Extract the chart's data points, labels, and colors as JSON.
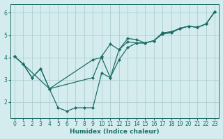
{
  "title": "",
  "xlabel": "Humidex (Indice chaleur)",
  "ylabel": "",
  "bg_color": "#d4ecee",
  "grid_color": "#aecdd1",
  "line_color": "#1e6e68",
  "ylim": [
    1.3,
    6.4
  ],
  "xlim": [
    -0.5,
    23.5
  ],
  "yticks": [
    2,
    3,
    4,
    5,
    6
  ],
  "xticks": [
    0,
    1,
    2,
    3,
    4,
    5,
    6,
    7,
    8,
    9,
    10,
    11,
    12,
    13,
    14,
    15,
    16,
    17,
    18,
    19,
    20,
    21,
    22,
    23
  ],
  "line1_x": [
    0,
    1,
    2,
    3,
    4,
    5,
    6,
    7,
    8,
    9,
    10,
    11,
    12,
    13,
    14,
    15,
    16,
    17,
    18,
    19,
    20,
    21,
    22,
    23
  ],
  "line1_y": [
    4.05,
    3.7,
    3.1,
    3.5,
    2.6,
    1.75,
    1.6,
    1.75,
    1.75,
    1.75,
    3.3,
    3.1,
    3.9,
    4.45,
    4.65,
    4.65,
    4.75,
    5.05,
    5.1,
    5.3,
    5.4,
    5.35,
    5.5,
    6.05
  ],
  "line2_x": [
    0,
    1,
    2,
    3,
    4,
    9,
    10,
    11,
    12,
    13,
    14,
    15,
    16,
    17,
    18,
    19,
    20,
    21,
    22,
    23
  ],
  "line2_y": [
    4.05,
    3.7,
    3.1,
    3.5,
    2.6,
    3.1,
    4.05,
    4.6,
    4.35,
    4.7,
    4.65,
    4.65,
    4.75,
    5.1,
    5.15,
    5.3,
    5.4,
    5.35,
    5.5,
    6.05
  ],
  "line3_x": [
    0,
    1,
    4,
    9,
    10,
    11,
    12,
    13,
    14,
    15,
    16,
    17,
    18,
    19,
    20,
    21,
    22,
    23
  ],
  "line3_y": [
    4.05,
    3.7,
    2.6,
    3.9,
    4.0,
    3.1,
    4.35,
    4.85,
    4.8,
    4.65,
    4.75,
    5.1,
    5.15,
    5.3,
    5.4,
    5.35,
    5.5,
    6.05
  ]
}
